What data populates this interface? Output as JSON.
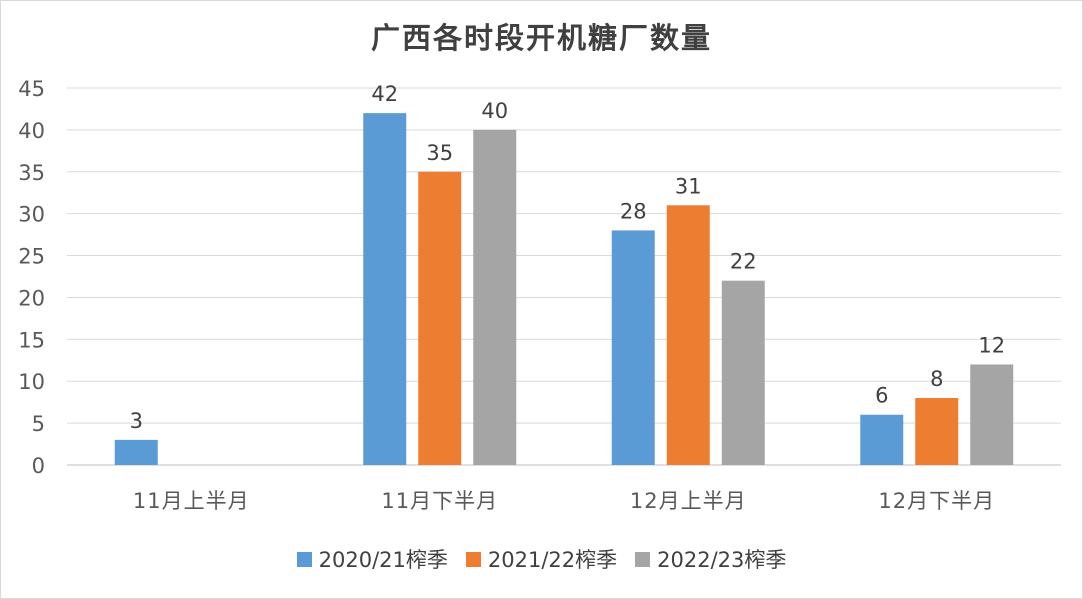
{
  "chart_data": {
    "type": "bar",
    "title": "广西各时段开机糖厂数量",
    "categories": [
      "11月上半月",
      "11月下半月",
      "12月上半月",
      "12月下半月"
    ],
    "series": [
      {
        "name": "2020/21榨季",
        "color": "#5b9bd5",
        "values": [
          3,
          42,
          28,
          6
        ]
      },
      {
        "name": "2021/22榨季",
        "color": "#ed7d31",
        "values": [
          null,
          35,
          31,
          8
        ]
      },
      {
        "name": "2022/23榨季",
        "color": "#a5a5a5",
        "values": [
          null,
          40,
          22,
          12
        ]
      }
    ],
    "ylim": [
      0,
      45
    ],
    "yticks": [
      0,
      5,
      10,
      15,
      20,
      25,
      30,
      35,
      40,
      45
    ],
    "grid": true,
    "legend_position": "bottom",
    "data_labels": true
  }
}
